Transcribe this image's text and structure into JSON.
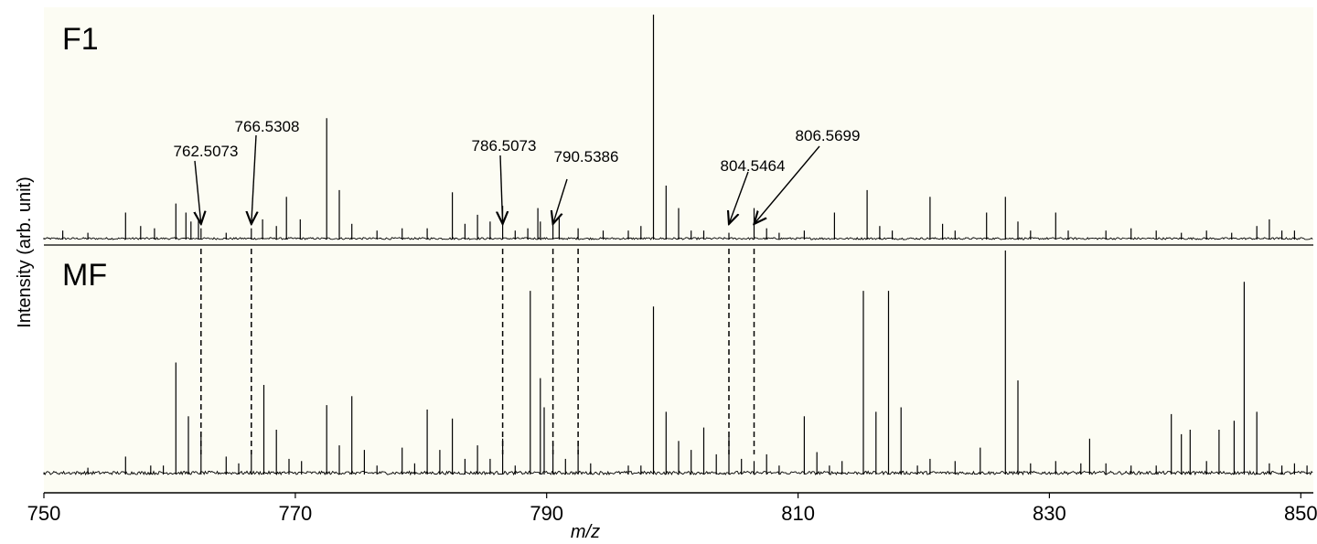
{
  "chart_data": {
    "type": "line",
    "xlabel": "m/z",
    "ylabel": "Intensity (arb. unit)",
    "xlim": [
      750,
      851
    ],
    "xticks": [
      750,
      770,
      790,
      810,
      830,
      850
    ],
    "grid": false,
    "background": "#fcfcf3",
    "line_color": "#000000",
    "panels": [
      {
        "label": "F1",
        "peaks": [
          [
            751.5,
            0.04
          ],
          [
            753.5,
            0.03
          ],
          [
            756.5,
            0.12
          ],
          [
            757.7,
            0.06
          ],
          [
            758.8,
            0.05
          ],
          [
            760.5,
            0.16
          ],
          [
            761.3,
            0.12
          ],
          [
            761.7,
            0.08
          ],
          [
            762.3,
            0.09
          ],
          [
            762.5,
            0.05
          ],
          [
            764.5,
            0.03
          ],
          [
            766.5,
            0.05
          ],
          [
            767.4,
            0.09
          ],
          [
            768.5,
            0.06
          ],
          [
            769.3,
            0.19
          ],
          [
            770.4,
            0.09
          ],
          [
            772.5,
            0.54
          ],
          [
            773.5,
            0.22
          ],
          [
            774.5,
            0.07
          ],
          [
            776.5,
            0.04
          ],
          [
            778.5,
            0.05
          ],
          [
            780.5,
            0.05
          ],
          [
            782.5,
            0.21
          ],
          [
            783.5,
            0.07
          ],
          [
            784.5,
            0.11
          ],
          [
            785.5,
            0.08
          ],
          [
            786.5,
            0.15
          ],
          [
            787.5,
            0.04
          ],
          [
            788.5,
            0.05
          ],
          [
            789.3,
            0.14
          ],
          [
            789.5,
            0.08
          ],
          [
            790.5,
            0.08
          ],
          [
            791.0,
            0.1
          ],
          [
            792.5,
            0.05
          ],
          [
            794.5,
            0.04
          ],
          [
            796.5,
            0.04
          ],
          [
            797.5,
            0.06
          ],
          [
            798.5,
            1.0
          ],
          [
            799.5,
            0.24
          ],
          [
            800.5,
            0.14
          ],
          [
            801.5,
            0.04
          ],
          [
            802.5,
            0.04
          ],
          [
            804.5,
            0.03
          ],
          [
            806.5,
            0.14
          ],
          [
            807.5,
            0.05
          ],
          [
            808.5,
            0.03
          ],
          [
            810.5,
            0.04
          ],
          [
            812.9,
            0.12
          ],
          [
            815.5,
            0.22
          ],
          [
            816.5,
            0.06
          ],
          [
            817.5,
            0.04
          ],
          [
            820.5,
            0.19
          ],
          [
            821.5,
            0.07
          ],
          [
            822.5,
            0.04
          ],
          [
            825.0,
            0.12
          ],
          [
            826.5,
            0.19
          ],
          [
            827.5,
            0.08
          ],
          [
            828.5,
            0.04
          ],
          [
            830.5,
            0.12
          ],
          [
            831.5,
            0.04
          ],
          [
            834.5,
            0.04
          ],
          [
            836.5,
            0.05
          ],
          [
            838.5,
            0.04
          ],
          [
            840.5,
            0.03
          ],
          [
            842.5,
            0.04
          ],
          [
            844.5,
            0.03
          ],
          [
            846.5,
            0.06
          ],
          [
            847.5,
            0.09
          ],
          [
            848.5,
            0.04
          ],
          [
            849.5,
            0.04
          ]
        ]
      },
      {
        "label": "MF",
        "peaks": [
          [
            753.5,
            0.03
          ],
          [
            756.5,
            0.08
          ],
          [
            758.5,
            0.04
          ],
          [
            759.5,
            0.04
          ],
          [
            760.5,
            0.5
          ],
          [
            761.5,
            0.26
          ],
          [
            762.5,
            0.18
          ],
          [
            764.5,
            0.08
          ],
          [
            765.5,
            0.05
          ],
          [
            766.5,
            0.11
          ],
          [
            767.5,
            0.4
          ],
          [
            768.5,
            0.2
          ],
          [
            769.5,
            0.07
          ],
          [
            770.5,
            0.06
          ],
          [
            772.5,
            0.31
          ],
          [
            773.5,
            0.13
          ],
          [
            774.5,
            0.35
          ],
          [
            775.5,
            0.11
          ],
          [
            776.5,
            0.04
          ],
          [
            778.5,
            0.12
          ],
          [
            779.5,
            0.05
          ],
          [
            780.5,
            0.29
          ],
          [
            781.5,
            0.11
          ],
          [
            782.5,
            0.25
          ],
          [
            783.5,
            0.07
          ],
          [
            784.5,
            0.13
          ],
          [
            785.5,
            0.07
          ],
          [
            786.5,
            0.16
          ],
          [
            787.5,
            0.04
          ],
          [
            788.7,
            0.82
          ],
          [
            789.5,
            0.43
          ],
          [
            789.8,
            0.3
          ],
          [
            790.5,
            0.14
          ],
          [
            791.5,
            0.07
          ],
          [
            792.5,
            0.15
          ],
          [
            793.5,
            0.05
          ],
          [
            796.5,
            0.04
          ],
          [
            797.5,
            0.04
          ],
          [
            798.5,
            0.75
          ],
          [
            799.5,
            0.28
          ],
          [
            800.5,
            0.15
          ],
          [
            801.5,
            0.11
          ],
          [
            802.5,
            0.21
          ],
          [
            803.5,
            0.09
          ],
          [
            804.5,
            0.17
          ],
          [
            805.5,
            0.07
          ],
          [
            806.5,
            0.06
          ],
          [
            807.5,
            0.09
          ],
          [
            808.5,
            0.04
          ],
          [
            810.5,
            0.26
          ],
          [
            811.5,
            0.1
          ],
          [
            812.5,
            0.04
          ],
          [
            813.5,
            0.06
          ],
          [
            815.2,
            0.82
          ],
          [
            816.2,
            0.28
          ],
          [
            817.2,
            0.82
          ],
          [
            818.2,
            0.3
          ],
          [
            819.5,
            0.04
          ],
          [
            820.5,
            0.07
          ],
          [
            822.5,
            0.06
          ],
          [
            824.5,
            0.12
          ],
          [
            826.5,
            1.0
          ],
          [
            827.5,
            0.42
          ],
          [
            828.5,
            0.05
          ],
          [
            830.5,
            0.06
          ],
          [
            832.5,
            0.05
          ],
          [
            833.2,
            0.16
          ],
          [
            834.5,
            0.05
          ],
          [
            836.5,
            0.04
          ],
          [
            838.5,
            0.04
          ],
          [
            839.7,
            0.27
          ],
          [
            840.5,
            0.18
          ],
          [
            841.2,
            0.2
          ],
          [
            842.5,
            0.06
          ],
          [
            843.5,
            0.2
          ],
          [
            844.7,
            0.24
          ],
          [
            845.5,
            0.86
          ],
          [
            846.5,
            0.28
          ],
          [
            847.5,
            0.05
          ],
          [
            848.5,
            0.04
          ],
          [
            849.5,
            0.05
          ],
          [
            850.5,
            0.04
          ]
        ]
      }
    ],
    "annotations": [
      {
        "text": "762.5073",
        "x": 762.5
      },
      {
        "text": "766.5308",
        "x": 766.5
      },
      {
        "text": "786.5073",
        "x": 786.5
      },
      {
        "text": "790.5386",
        "x": 790.5
      },
      {
        "text": "804.5464",
        "x": 804.5
      },
      {
        "text": "806.5699",
        "x": 806.5
      }
    ],
    "dashed_links": [
      762.5,
      766.5,
      786.5,
      790.5,
      792.5,
      804.5,
      806.5
    ]
  }
}
